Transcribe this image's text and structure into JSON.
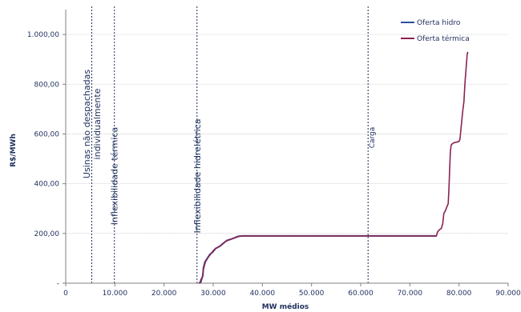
{
  "chart_data": {
    "type": "line",
    "xlabel": "MW médios",
    "ylabel": "R$/MWh",
    "xlim": [
      0,
      90000
    ],
    "ylim": [
      0,
      1100
    ],
    "x_ticks": [
      {
        "v": 0,
        "label": "0"
      },
      {
        "v": 10000,
        "label": "10.000"
      },
      {
        "v": 20000,
        "label": "20.000"
      },
      {
        "v": 30000,
        "label": "30.000"
      },
      {
        "v": 40000,
        "label": "40.000"
      },
      {
        "v": 50000,
        "label": "50.000"
      },
      {
        "v": 60000,
        "label": "60.000"
      },
      {
        "v": 70000,
        "label": "70.000"
      },
      {
        "v": 80000,
        "label": "80.000"
      },
      {
        "v": 90000,
        "label": "90.000"
      }
    ],
    "y_ticks": [
      {
        "v": 0,
        "label": "-"
      },
      {
        "v": 200,
        "label": "200,00"
      },
      {
        "v": 400,
        "label": "400,00"
      },
      {
        "v": 600,
        "label": "600,00"
      },
      {
        "v": 800,
        "label": "800,00"
      },
      {
        "v": 1000,
        "label": "1.000,00"
      }
    ],
    "grid": "horizontal",
    "legend_position": "top-right",
    "colors": {
      "hidro": "#2f4f9a",
      "termica": "#8b2252",
      "text": "#1f2f5c",
      "grid": "#c8c8c8"
    },
    "series": [
      {
        "name": "Oferta hidro",
        "color": "#2f4f9a",
        "points": [
          [
            27400,
            0
          ],
          [
            27700,
            20
          ],
          [
            27900,
            30
          ],
          [
            28000,
            60
          ],
          [
            28300,
            85
          ],
          [
            28800,
            100
          ],
          [
            29300,
            115
          ],
          [
            29900,
            125
          ],
          [
            30500,
            140
          ],
          [
            31300,
            148
          ],
          [
            32000,
            160
          ],
          [
            32800,
            172
          ],
          [
            33600,
            177
          ],
          [
            34300,
            182
          ],
          [
            35000,
            188
          ],
          [
            36000,
            190
          ],
          [
            45000,
            190
          ],
          [
            55000,
            190
          ],
          [
            65000,
            190
          ],
          [
            75400,
            190
          ]
        ]
      },
      {
        "name": "Oferta térmica",
        "color": "#8b2252",
        "points": [
          [
            27000,
            0
          ],
          [
            27300,
            2
          ],
          [
            27500,
            15
          ],
          [
            27800,
            25
          ],
          [
            28000,
            55
          ],
          [
            28400,
            85
          ],
          [
            29000,
            105
          ],
          [
            29600,
            120
          ],
          [
            30200,
            135
          ],
          [
            31000,
            145
          ],
          [
            31800,
            155
          ],
          [
            32500,
            168
          ],
          [
            33300,
            175
          ],
          [
            34100,
            180
          ],
          [
            34900,
            186
          ],
          [
            35500,
            190
          ],
          [
            45000,
            190
          ],
          [
            55000,
            190
          ],
          [
            65000,
            190
          ],
          [
            75400,
            190
          ],
          [
            75600,
            205
          ],
          [
            76000,
            215
          ],
          [
            76400,
            220
          ],
          [
            76700,
            240
          ],
          [
            76900,
            280
          ],
          [
            77200,
            290
          ],
          [
            77500,
            305
          ],
          [
            77800,
            320
          ],
          [
            77950,
            380
          ],
          [
            78100,
            460
          ],
          [
            78250,
            530
          ],
          [
            78400,
            555
          ],
          [
            78600,
            560
          ],
          [
            79000,
            565
          ],
          [
            79500,
            567
          ],
          [
            80000,
            570
          ],
          [
            80200,
            580
          ],
          [
            80400,
            620
          ],
          [
            80600,
            660
          ],
          [
            80800,
            700
          ],
          [
            81000,
            730
          ],
          [
            81200,
            800
          ],
          [
            81350,
            840
          ],
          [
            81500,
            880
          ],
          [
            81650,
            920
          ],
          [
            81800,
            930
          ]
        ]
      }
    ],
    "vlines": [
      {
        "x": 5300,
        "label": "Usinas não despachadas individualmente",
        "lines": [
          "Usinas não despachadas",
          "individualmente"
        ],
        "style": "large"
      },
      {
        "x": 9900,
        "label": "Inflexibilidade térmica",
        "lines": [
          "Inflexibilidade térmica"
        ],
        "style": "large"
      },
      {
        "x": 26700,
        "label": "Inflexibilidade hidrelétrica",
        "lines": [
          "Inflexibilidade hidrelétrica"
        ],
        "style": "large"
      },
      {
        "x": 61500,
        "label": "Carga",
        "lines": [
          "Carga"
        ],
        "style": "small"
      }
    ]
  }
}
